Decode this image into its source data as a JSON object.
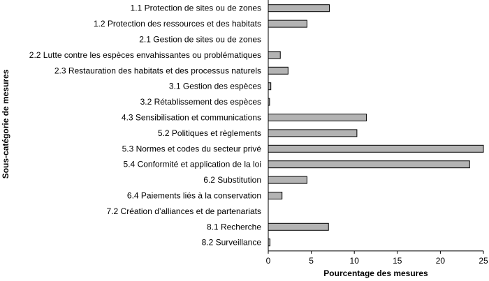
{
  "chart_data": {
    "type": "bar",
    "orientation": "horizontal",
    "categories": [
      "1.1 Protection de sites ou de zones",
      "1.2 Protection des ressources et des habitats",
      "2.1 Gestion de sites ou de zones",
      "2.2 Lutte contre les espèces envahissantes ou problématiques",
      "2.3 Restauration des habitats et des processus naturels",
      "3.1 Gestion des espèces",
      "3.2 Rétablissement des espèces",
      "4.3 Sensibilisation et communications",
      "5.2 Politiques et règlements",
      "5.3 Normes et codes du secteur privé",
      "5.4 Conformité et application de la loi",
      "6.2 Substitution",
      "6.4 Paiements liés à la conservation",
      "7.2 Création d’alliances et de partenariats",
      "8.1 Recherche",
      "8.2 Surveillance"
    ],
    "values": [
      7.1,
      4.5,
      0,
      1.4,
      2.3,
      0.3,
      0.15,
      11.4,
      10.3,
      25.0,
      23.4,
      4.5,
      1.6,
      0,
      7.0,
      0.2
    ],
    "xlabel": "Pourcentage des mesures",
    "ylabel": "Sous-catégorie de mesures",
    "xlim": [
      0,
      25
    ],
    "xticks": [
      0,
      5,
      10,
      15,
      20,
      25
    ],
    "grid": false,
    "legend": "none",
    "bar_color": "#b3b3b3",
    "bar_edge_color": "#000000"
  }
}
